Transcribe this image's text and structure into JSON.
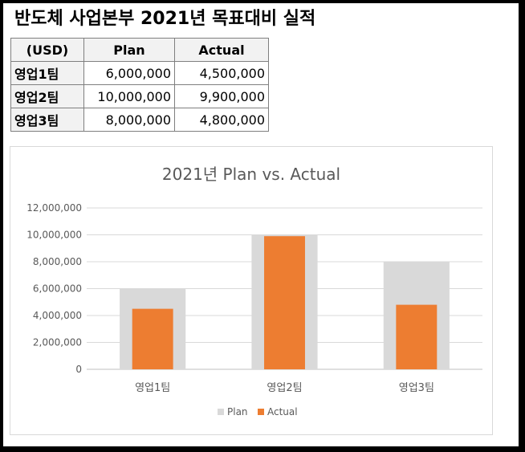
{
  "page_title": "반도체 사업본부 2021년 목표대비 실적",
  "table": {
    "headers": [
      "(USD)",
      "Plan",
      "Actual"
    ],
    "rows": [
      {
        "label": "영업1팀",
        "plan": "6,000,000",
        "actual": "4,500,000"
      },
      {
        "label": "영업2팀",
        "plan": "10,000,000",
        "actual": "9,900,000"
      },
      {
        "label": "영업3팀",
        "plan": "8,000,000",
        "actual": "4,800,000"
      }
    ]
  },
  "chart_data": {
    "type": "bar",
    "title": "2021년 Plan vs. Actual",
    "categories": [
      "영업1팀",
      "영업2팀",
      "영업3팀"
    ],
    "series": [
      {
        "name": "Plan",
        "values": [
          6000000,
          10000000,
          8000000
        ],
        "color": "#d9d9d9"
      },
      {
        "name": "Actual",
        "values": [
          4500000,
          9900000,
          4800000
        ],
        "color": "#ed7d31"
      }
    ],
    "ylim": [
      0,
      12000000
    ],
    "yticks": [
      "0",
      "2,000,000",
      "4,000,000",
      "6,000,000",
      "8,000,000",
      "10,000,000",
      "12,000,000"
    ],
    "grid": true,
    "legend": "bottom",
    "overlap": true
  }
}
